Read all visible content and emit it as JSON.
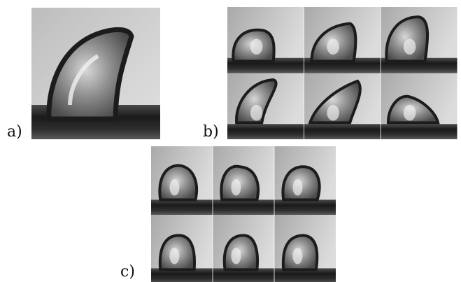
{
  "labels": {
    "a": "a)",
    "b": "b)",
    "c": "c)"
  },
  "panels": {
    "a": {
      "frames": 1
    },
    "b": {
      "rows": 2,
      "cols": 3,
      "frames": 6
    },
    "c": {
      "rows": 2,
      "cols": 3,
      "frames": 6
    }
  }
}
